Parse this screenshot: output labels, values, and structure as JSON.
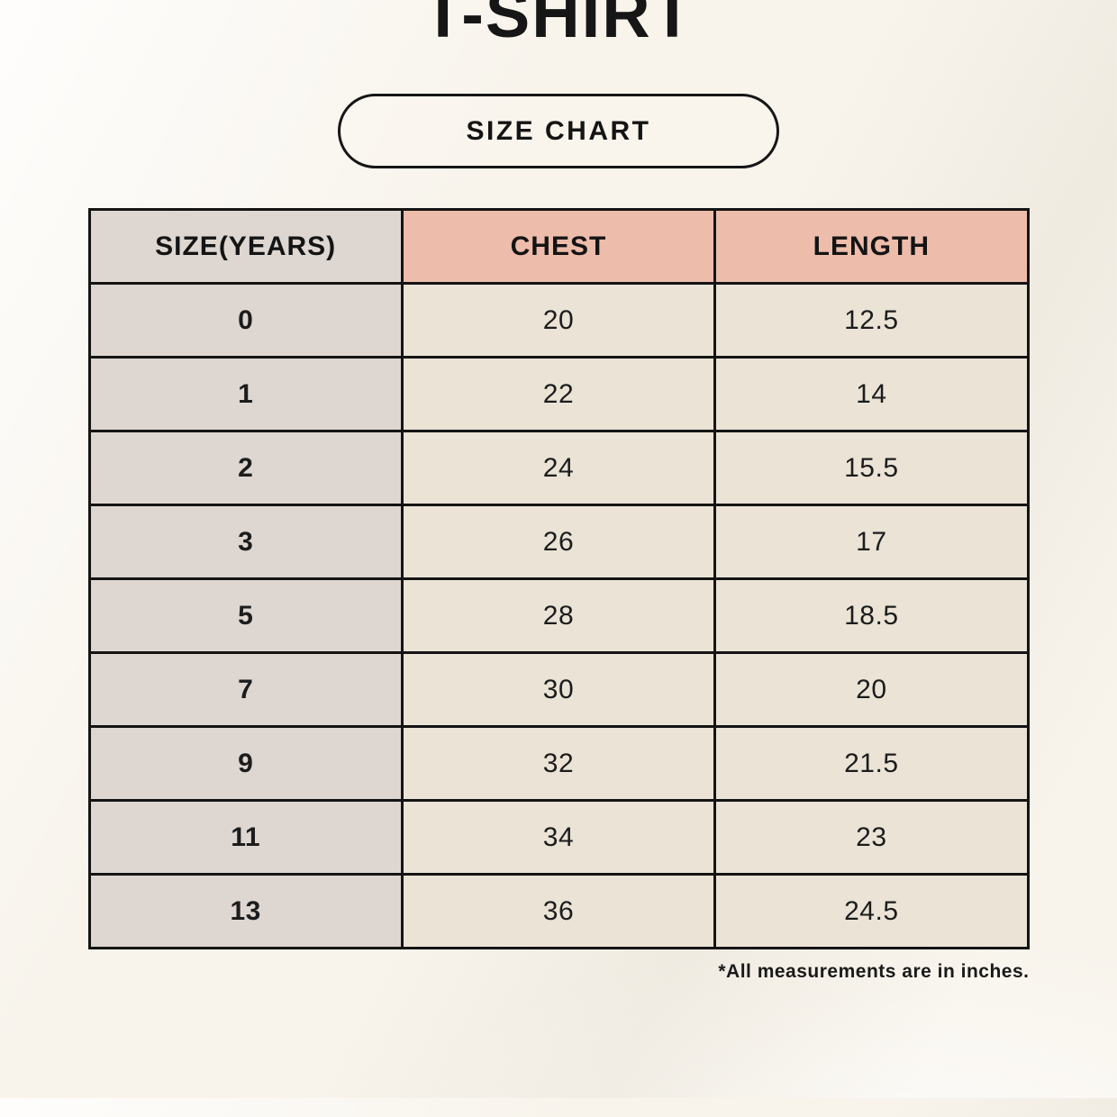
{
  "header": {
    "title": "T-SHIRT",
    "badge": "SIZE CHART"
  },
  "footnote": "*All measurements are in inches.",
  "chart_data": {
    "type": "table",
    "columns": [
      "SIZE(YEARS)",
      "CHEST",
      "LENGTH"
    ],
    "rows": [
      [
        "0",
        "20",
        "12.5"
      ],
      [
        "1",
        "22",
        "14"
      ],
      [
        "2",
        "24",
        "15.5"
      ],
      [
        "3",
        "26",
        "17"
      ],
      [
        "5",
        "28",
        "18.5"
      ],
      [
        "7",
        "30",
        "20"
      ],
      [
        "9",
        "32",
        "21.5"
      ],
      [
        "11",
        "34",
        "23"
      ],
      [
        "13",
        "36",
        "24.5"
      ]
    ],
    "title": "T-SHIRT SIZE CHART",
    "units_note": "inches"
  },
  "colors": {
    "background": "#f8f4ec",
    "header_accent": "#edbcab",
    "size_column": "#ddd6d1",
    "data_cell": "#eae3d6",
    "border_ink": "#141414"
  }
}
